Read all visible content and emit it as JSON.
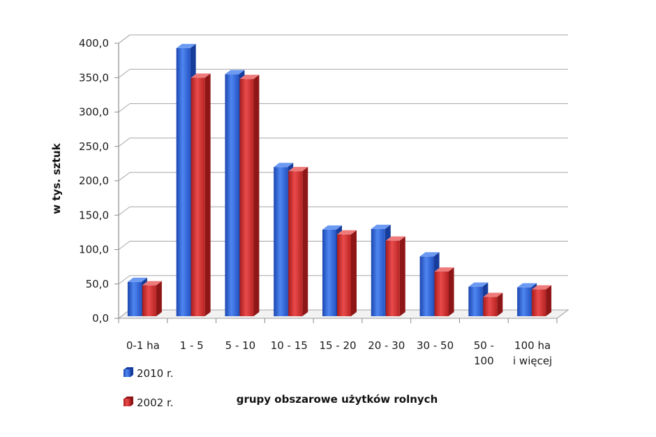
{
  "chart_data": {
    "type": "bar",
    "categories": [
      [
        "0-1 ha"
      ],
      [
        "1 - 5"
      ],
      [
        "5 - 10"
      ],
      [
        "10 - 15"
      ],
      [
        "15 - 20"
      ],
      [
        "20 - 30"
      ],
      [
        "30 - 50"
      ],
      [
        "50 -",
        "100"
      ],
      [
        "100 ha",
        "i więcej"
      ]
    ],
    "series": [
      {
        "name": "2010 r.",
        "color": "#2f63d6",
        "values": [
          50.0,
          390.0,
          352.0,
          217.0,
          126.0,
          127.0,
          87.0,
          43.0,
          42.0
        ]
      },
      {
        "name": "2002 r.",
        "color": "#d42f2f",
        "values": [
          45.0,
          347.0,
          345.0,
          211.0,
          119.0,
          110.0,
          65.0,
          28.0,
          39.0
        ]
      }
    ],
    "yticks": [
      "0,0",
      "50,0",
      "100,0",
      "150,0",
      "200,0",
      "250,0",
      "300,0",
      "350,0",
      "400,0"
    ],
    "ylabel": "w tys. sztuk",
    "xlabel": "grupy obszarowe użytków rolnych",
    "ylim": [
      0,
      400
    ],
    "grid": true,
    "legend_position": "bottom-left"
  }
}
